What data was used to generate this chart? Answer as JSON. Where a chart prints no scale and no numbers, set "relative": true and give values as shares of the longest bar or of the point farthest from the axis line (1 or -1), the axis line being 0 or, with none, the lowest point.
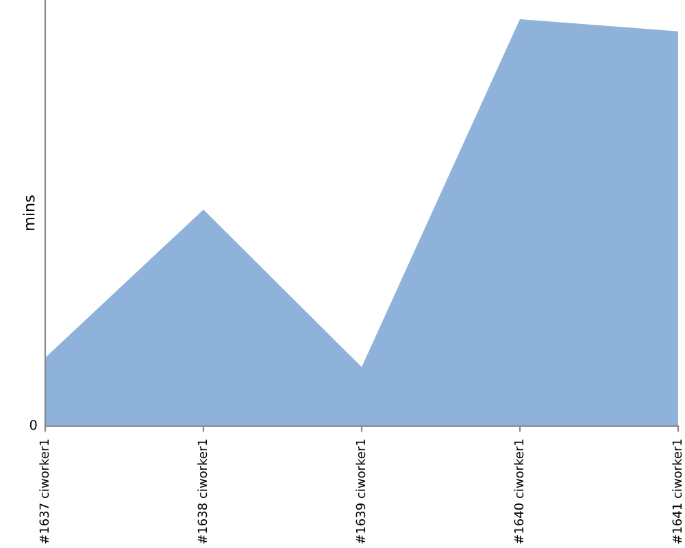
{
  "chart_data": {
    "type": "area",
    "relative": true,
    "ylabel": "mins",
    "annotations": [
      "0"
    ],
    "categories": [
      "#1637 ciworker1",
      "#1638 ciworker1",
      "#1639 ciworker1",
      "#1640 ciworker1",
      "#1641 ciworker1"
    ],
    "series": [
      {
        "color": "#8fb2da",
        "values": [
          0.168,
          0.532,
          0.145,
          1,
          0.97
        ]
      }
    ],
    "grid": false,
    "legend": false
  }
}
